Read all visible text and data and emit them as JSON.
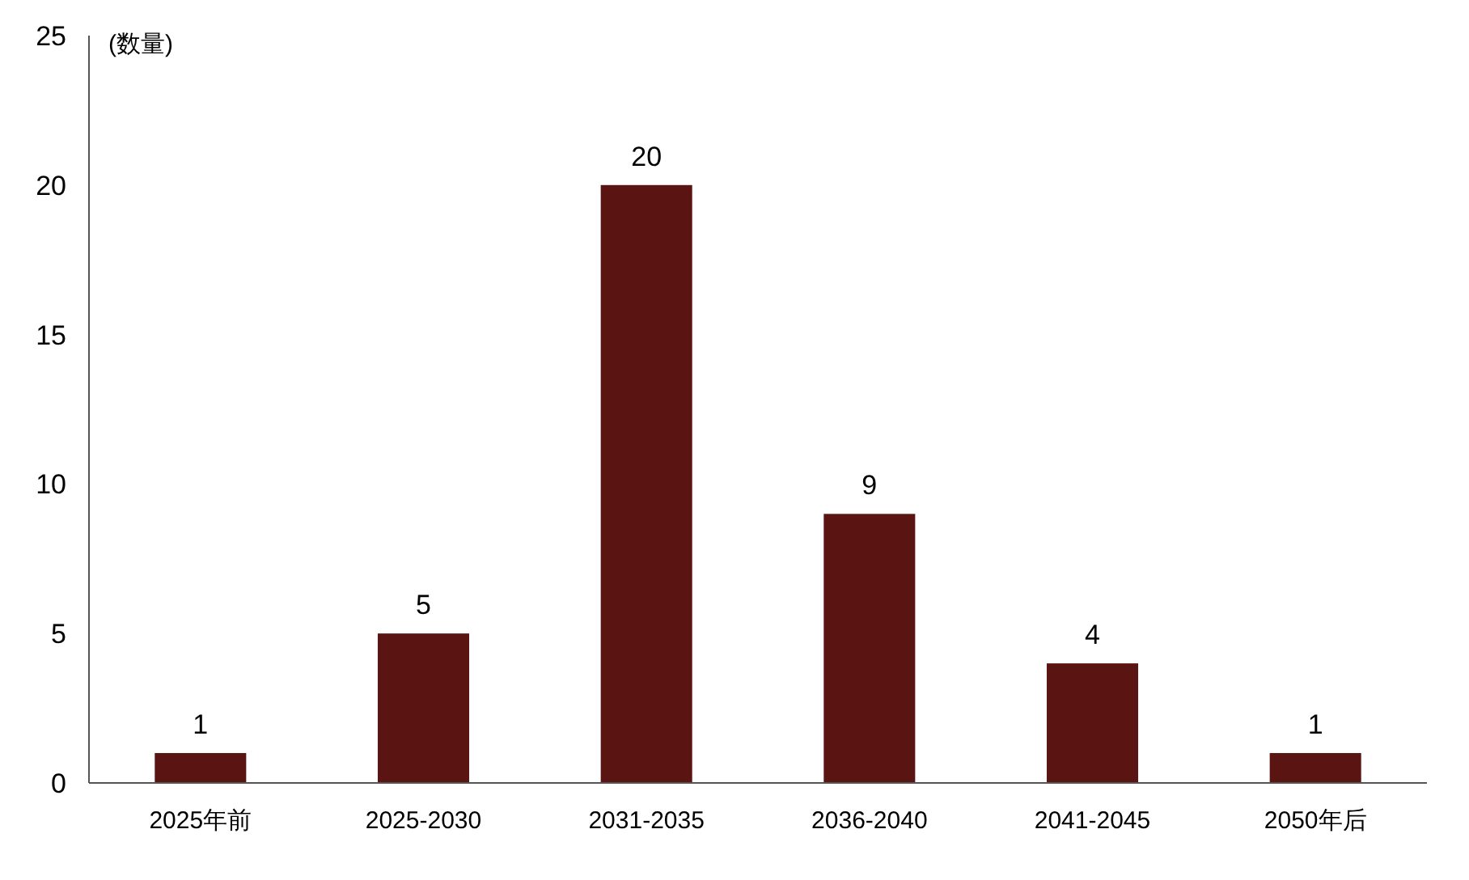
{
  "chart_data": {
    "type": "bar",
    "ylabel": "(数量)",
    "categories": [
      "2025年前",
      "2025-2030",
      "2031-2035",
      "2036-2040",
      "2041-2045",
      "2050年后"
    ],
    "values": [
      1,
      5,
      20,
      9,
      4,
      1
    ],
    "color": "#5a1412",
    "ylim": [
      0,
      25
    ],
    "yticks": [
      0,
      5,
      10,
      15,
      20,
      25
    ],
    "data_labels": true
  }
}
